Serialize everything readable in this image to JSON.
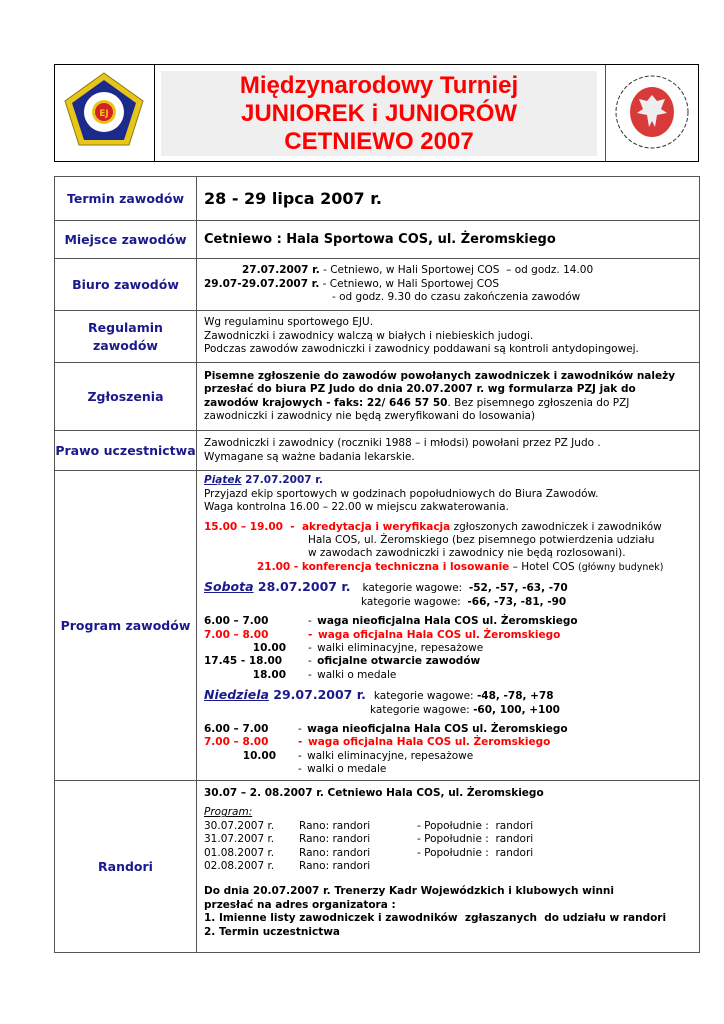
{
  "header": {
    "title_lines": [
      "Międzynarodowy Turniej",
      "JUNIOREK i JUNIORÓW",
      "CETNIEWO 2007"
    ],
    "logo_left": "EJU-logo",
    "logo_right": "PZJ-eagle-logo",
    "colors": {
      "title": "#ff0000",
      "label": "#1a1a8c"
    }
  },
  "rows": {
    "termin": {
      "label": "Termin zawodów",
      "value": "28 - 29 lipca 2007 r."
    },
    "miejsce": {
      "label": "Miejsce zawodów",
      "value": "Cetniewo : Hala Sportowa COS, ul. Żeromskiego"
    },
    "biuro": {
      "label": "Biuro zawodów",
      "l1_date": "27.07.2007 r.",
      "l1_text": " - Cetniewo, w Hali Sportowej COS  – od godz. 14.00",
      "l2_date": "29.07-29.07.2007 r.",
      "l2_text": " - Cetniewo, w Hali Sportowej COS",
      "l3_text": "- od godz. 9.30 do czasu zakończenia zawodów"
    },
    "regulamin": {
      "label": "Regulamin zawodów",
      "lines": [
        "Wg regulaminu sportowego EJU.",
        "Zawodniczki i zawodnicy walczą w białych i niebieskich judogi.",
        "Podczas zawodów zawodniczki i zawodnicy poddawani są kontroli antydopingowej."
      ]
    },
    "zgloszenia": {
      "label": "Zgłoszenia",
      "bold": "Pisemne zgłoszenie do zawodów powołanych zawodniczek i zawodników należy przesłać do biura PZ Judo do dnia 20.07.2007 r. wg formularza PZJ jak do zawodów krajowych  -  faks:  22/ 646 57 50",
      "normal": ". Bez pisemnego zgłoszenia do PZJ zawodniczki i zawodnicy nie będą zweryfikowani do losowania)"
    },
    "prawo": {
      "label": "Prawo uczestnictwa",
      "lines": [
        "Zawodniczki i zawodnicy (roczniki 1988 – i młodsi) powołani przez PZ Judo .",
        "Wymagane są ważne badania lekarskie."
      ]
    },
    "program": {
      "label": "Program zawodów",
      "piatek": {
        "day": "Piątek",
        "date": " 27.07.2007 r.",
        "lines": [
          "Przyjazd ekip sportowych w godzinach popołudniowych do Biura Zawodów.",
          "Waga kontrolna 16.00 – 22.00 w miejscu zakwaterowania."
        ],
        "akr_time": "15.00 – 19.00  -  ",
        "akr_bold": "akredytacja i weryfikacja",
        "akr_text": " zgłoszonych zawodniczek i zawodników",
        "akr_l2": "Hala COS, ul. Żeromskiego (bez pisemnego potwierdzenia udziału",
        "akr_l3": "w zawodach zawodniczki i zawodnicy nie będą rozlosowani).",
        "konf_time": "21.00 - ",
        "konf_bold": "konferencja techniczna i losowanie",
        "konf_text": " – Hotel COS ",
        "konf_small": "(główny budynek)"
      },
      "sobota": {
        "day": "Sobota",
        "date": " 28.07.2007 r.",
        "kat_label": "kategorie wagowe:",
        "kat1": "-52, -57, -63, -70",
        "kat2": "-66, -73, -81, -90",
        "items": [
          {
            "time": "6.00 – 7.00",
            "text": "waga nieoficjalna Hala COS ul. Żeromskiego",
            "style": "b"
          },
          {
            "time": "7.00 – 8.00",
            "text": "waga oficjalna Hala COS ul. Żeromskiego",
            "style": "red"
          },
          {
            "time": "10.00",
            "text": "walki eliminacyjne, repesażowe",
            "style": "n"
          },
          {
            "time": "17.45 - 18.00",
            "text": "oficjalne otwarcie zawodów",
            "style": "b"
          },
          {
            "time": "18.00",
            "text": "walki o medale",
            "style": "n"
          }
        ]
      },
      "niedziela": {
        "day": "Niedziela",
        "date": " 29.07.2007 r.",
        "kat_label": "kategorie wagowe:",
        "kat1": "-48, -78, +78",
        "kat2": "-60, 100, +100",
        "items": [
          {
            "time": "6.00 – 7.00",
            "text": "waga nieoficjalna Hala COS ul. Żeromskiego",
            "style": "b"
          },
          {
            "time": "7.00 – 8.00",
            "text": "waga oficjalna Hala COS ul. Żeromskiego",
            "style": "red"
          },
          {
            "time": "10.00",
            "text": "walki eliminacyjne, repesażowe",
            "style": "n"
          },
          {
            "time": "",
            "text": "walki o medale",
            "style": "n"
          }
        ]
      }
    },
    "randori": {
      "label": "Randori",
      "heading": "30.07 – 2. 08.2007 r. Cetniewo Hala COS, ul. Żeromskiego",
      "program_label": "Program:",
      "schedule": [
        {
          "date": "30.07.2007 r.",
          "morning": "Rano: randori",
          "afternoon": "- Popołudnie :  randori"
        },
        {
          "date": "31.07.2007 r.",
          "morning": "Rano: randori",
          "afternoon": "- Popołudnie :  randori"
        },
        {
          "date": "01.08.2007 r.",
          "morning": "Rano: randori",
          "afternoon": "- Popołudnie :  randori"
        },
        {
          "date": "02.08.2007 r.",
          "morning": "Rano: randori",
          "afternoon": ""
        }
      ],
      "notes": [
        "Do dnia 20.07.2007 r. Trenerzy Kadr Wojewódzkich i klubowych winni",
        "przesłać na adres organizatora :",
        "1. Imienne listy zawodniczek i zawodników  zgłaszanych  do udziału w randori",
        "2. Termin uczestnictwa"
      ]
    }
  }
}
